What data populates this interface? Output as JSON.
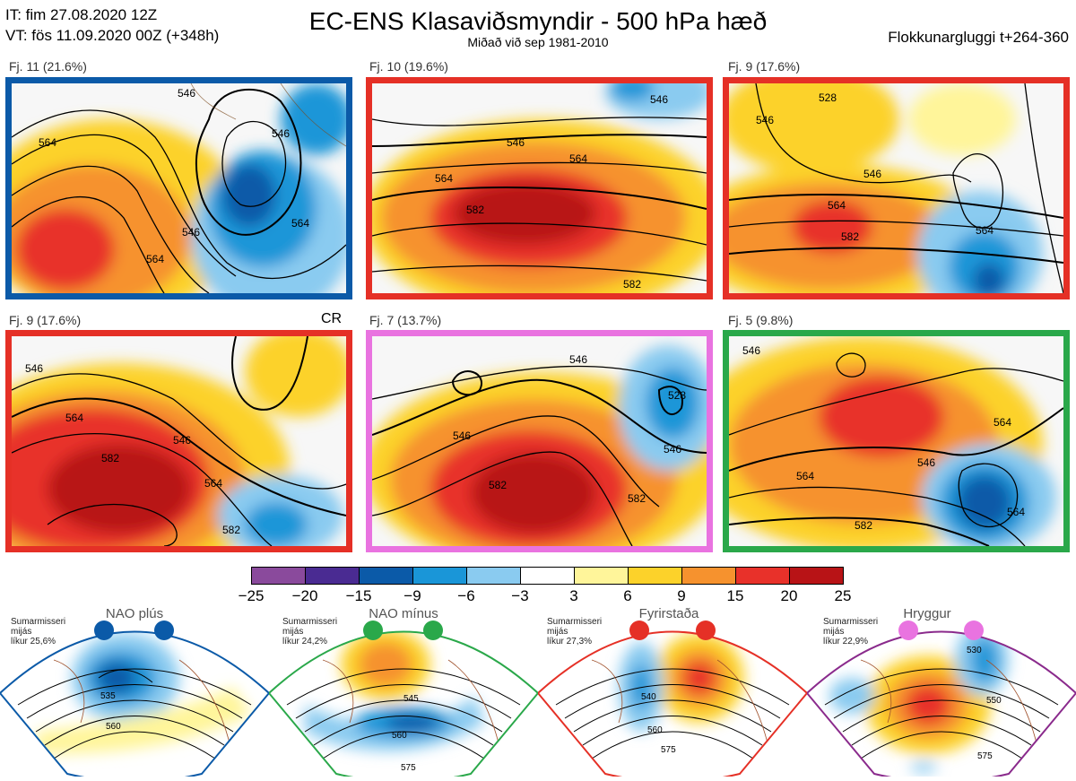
{
  "header": {
    "it": "IT: fim 27.08.2020 12Z",
    "vt": "VT: fös 11.09.2020 00Z  (+348h)",
    "title": "EC-ENS Klasaviðsmyndir - 500 hPa hæð",
    "subtitle": "Miðað við sep 1981-2010",
    "window": "Flokkunargluggi t+264-360"
  },
  "panels": [
    {
      "label": "Fj. 11 (21.6%)",
      "border": "#0b5aa8",
      "tag": "",
      "contours": [
        "546",
        "546",
        "564",
        "564",
        "546",
        "564"
      ]
    },
    {
      "label": "Fj. 10 (19.6%)",
      "border": "#e53026",
      "tag": "",
      "contours": [
        "546",
        "546",
        "564",
        "564",
        "582",
        "582"
      ]
    },
    {
      "label": "Fj. 9 (17.6%)",
      "border": "#e53026",
      "tag": "",
      "contours": [
        "528",
        "546",
        "546",
        "564",
        "564",
        "582"
      ]
    },
    {
      "label": "Fj. 9 (17.6%)",
      "border": "#e53026",
      "tag": "CR",
      "contours": [
        "546",
        "564",
        "546",
        "582",
        "564",
        "582"
      ]
    },
    {
      "label": "Fj. 7 (13.7%)",
      "border": "#e973e0",
      "tag": "",
      "contours": [
        "546",
        "546",
        "528",
        "546",
        "582",
        "582"
      ]
    },
    {
      "label": "Fj. 5 (9.8%)",
      "border": "#2aa84a",
      "tag": "",
      "contours": [
        "546",
        "564",
        "546",
        "564",
        "564",
        "582"
      ]
    }
  ],
  "colorbar": {
    "colors": [
      "#8a4a9c",
      "#4a2b92",
      "#0b5aa8",
      "#1a96d8",
      "#8acbf0",
      "#ffffff",
      "#fff59a",
      "#fcd22a",
      "#f6922e",
      "#e8312a",
      "#b81316"
    ],
    "ticks": [
      "−25",
      "−20",
      "−15",
      "−9",
      "−6",
      "−3",
      "3",
      "6",
      "9",
      "15",
      "20",
      "25"
    ]
  },
  "regimes": [
    {
      "name": "NAO plús",
      "info": [
        "Sumarmisseri",
        "mijás",
        "líkur 25,6%"
      ],
      "border": "#0b5aa8",
      "dot": "#0b5aa8",
      "contours": [
        "535",
        "560"
      ]
    },
    {
      "name": "NAO mínus",
      "info": [
        "Sumarmisseri",
        "mijás",
        "líkur 24,2%"
      ],
      "border": "#2aa84a",
      "dot": "#2aa84a",
      "contours": [
        "545",
        "560",
        "575"
      ]
    },
    {
      "name": "Fyrirstaða",
      "info": [
        "Sumarmisseri",
        "mijás",
        "líkur 27,3%"
      ],
      "border": "#e53026",
      "dot": "#e53026",
      "contours": [
        "540",
        "560",
        "575"
      ]
    },
    {
      "name": "Hryggur",
      "info": [
        "Sumarmisseri",
        "mijás",
        "líkur 22,9%"
      ],
      "border": "#8a2a8c",
      "dot": "#e973e0",
      "contours": [
        "530",
        "550",
        "575"
      ]
    }
  ]
}
